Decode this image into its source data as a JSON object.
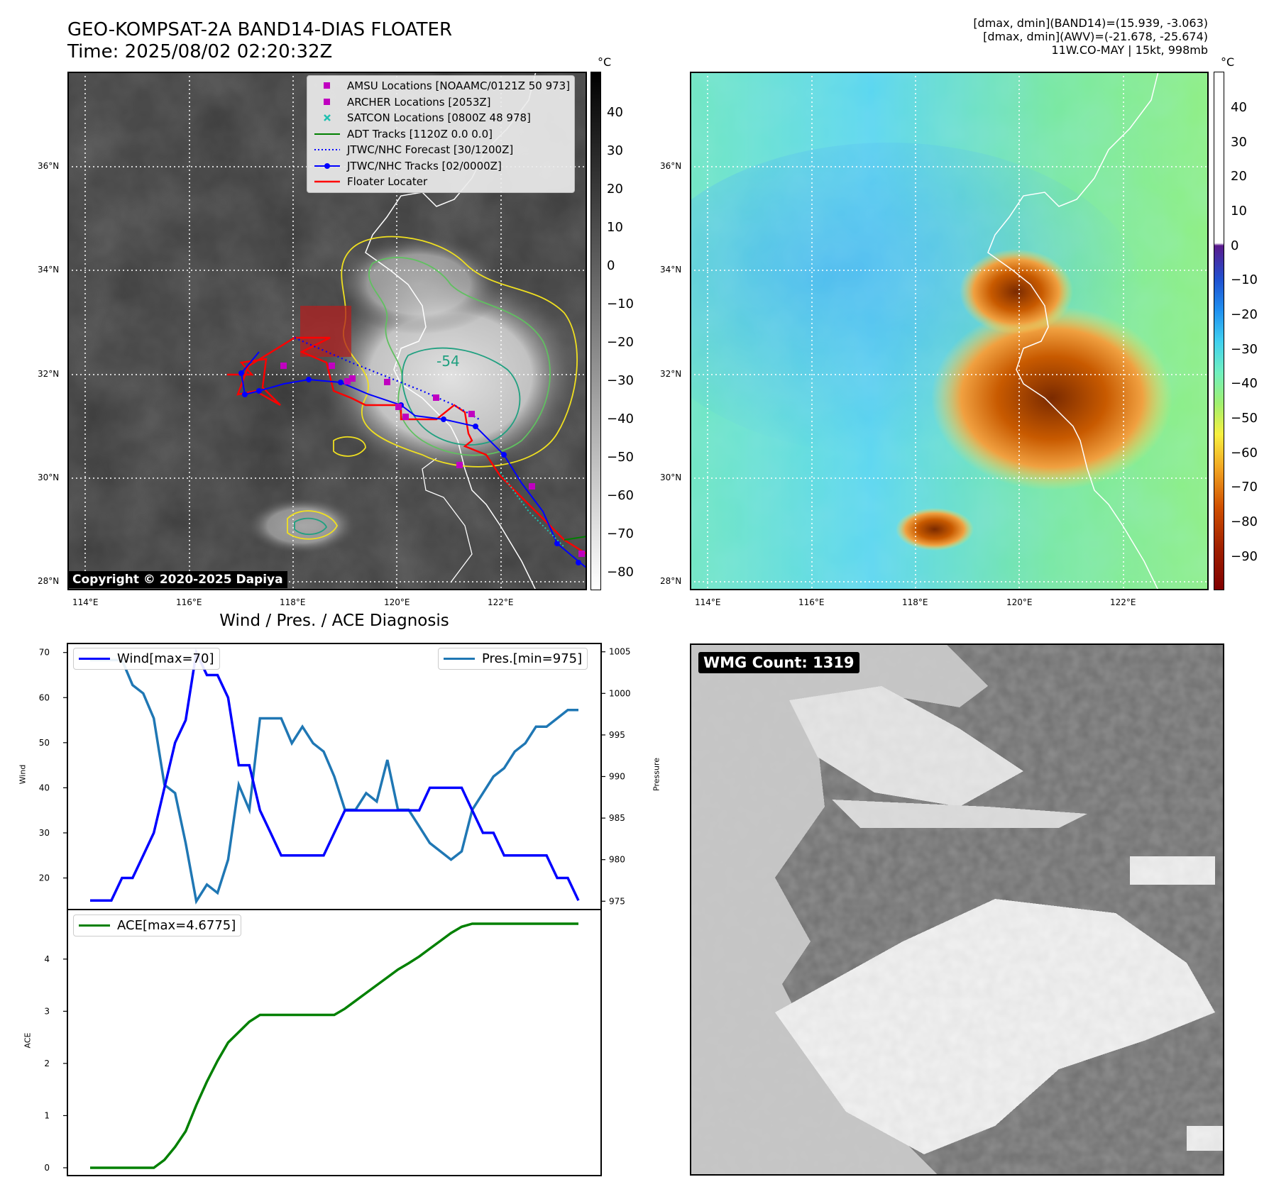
{
  "header": {
    "title_line1": "GEO-KOMPSAT-2A BAND14-DIAS FLOATER",
    "title_line2": "Time: 2025/08/02 02:20:32Z",
    "info_line1": "[dmax, dmin](BAND14)=(15.939, -3.063)",
    "info_line2": "[dmax, dmin](AWV)=(-21.678, -25.674)",
    "info_line3": "11W.CO-MAY | 15kt, 998mb"
  },
  "map_left": {
    "unit": "°C",
    "lat_labels": [
      "36°N",
      "34°N",
      "32°N",
      "30°N",
      "28°N"
    ],
    "lon_labels": [
      "114°E",
      "116°E",
      "118°E",
      "120°E",
      "122°E"
    ],
    "colorbar_ticks": [
      "40",
      "30",
      "20",
      "10",
      "0",
      "−10",
      "−20",
      "−30",
      "−40",
      "−50",
      "−60",
      "−70",
      "−80"
    ],
    "contour_label": "-54",
    "legend": [
      {
        "label": "AMSU Locations [NOAAMC/0121Z 50 973]",
        "symbol": "square",
        "color": "#c000c0"
      },
      {
        "label": "ARCHER Locations [2053Z]",
        "symbol": "square",
        "color": "#c000c0"
      },
      {
        "label": "SATCON Locations [0800Z 48 978]",
        "symbol": "x",
        "color": "#20c0b0"
      },
      {
        "label": "ADT Tracks [1120Z 0.0 0.0]",
        "symbol": "line",
        "color": "#008000"
      },
      {
        "label": "JTWC/NHC Forecast [30/1200Z]",
        "symbol": "dotted",
        "color": "#0000ff"
      },
      {
        "label": "JTWC/NHC Tracks [02/0000Z]",
        "symbol": "line-dot",
        "color": "#0000ff"
      },
      {
        "label": "Floater Locater",
        "symbol": "line",
        "color": "#ff0000"
      }
    ],
    "copyright": "Copyright © 2020-2025 Dapiya"
  },
  "map_right": {
    "unit": "°C",
    "lat_labels": [
      "36°N",
      "34°N",
      "32°N",
      "30°N",
      "28°N"
    ],
    "lon_labels": [
      "114°E",
      "116°E",
      "118°E",
      "120°E",
      "122°E"
    ],
    "colorbar_ticks": [
      "40",
      "30",
      "20",
      "10",
      "0",
      "−10",
      "−20",
      "−30",
      "−40",
      "−50",
      "−60",
      "−70",
      "−80",
      "−90"
    ]
  },
  "diagnosis": {
    "subtitle": "Wind / Pres. / ACE Diagnosis",
    "wind_ylabel": "Wind",
    "pres_ylabel": "Pressure",
    "ace_ylabel": "ACE",
    "wind_legend": "Wind[max=70]",
    "pres_legend": "Pres.[min=975]",
    "ace_legend": "ACE[max=4.6775]",
    "colors": {
      "wind": "#0000ff",
      "pressure": "#1f77b4",
      "ace": "#008000"
    }
  },
  "wmg": {
    "label": "WMG Count: 1319"
  },
  "chart_data": [
    {
      "type": "line",
      "name": "Wind",
      "ylabel": "Wind",
      "ylim": [
        13,
        72
      ],
      "yticks": [
        20,
        30,
        40,
        50,
        60,
        70
      ],
      "series": [
        {
          "name": "Wind[max=70]",
          "values": [
            15,
            15,
            15,
            20,
            20,
            25,
            30,
            40,
            50,
            55,
            70,
            65,
            65,
            60,
            45,
            45,
            35,
            30,
            25,
            25,
            25,
            25,
            25,
            30,
            35,
            35,
            35,
            35,
            35,
            35,
            35,
            35,
            40,
            40,
            40,
            40,
            35,
            30,
            30,
            25,
            25,
            25,
            25,
            25,
            20,
            20,
            15
          ]
        }
      ]
    },
    {
      "type": "line",
      "name": "Pressure",
      "ylabel": "Pressure",
      "ylim": [
        974,
        1006
      ],
      "yticks": [
        975,
        980,
        985,
        990,
        995,
        1000,
        1005
      ],
      "series": [
        {
          "name": "Pres.[min=975]",
          "values": [
            1004,
            1004,
            1004,
            1004,
            1001,
            1000,
            997,
            989,
            988,
            982,
            975,
            977,
            976,
            980,
            989,
            986,
            997,
            997,
            997,
            994,
            996,
            994,
            993,
            990,
            986,
            986,
            988,
            987,
            992,
            986,
            986,
            984,
            982,
            981,
            980,
            981,
            986,
            988,
            990,
            991,
            993,
            994,
            996,
            996,
            997,
            998,
            998
          ]
        }
      ]
    },
    {
      "type": "line",
      "name": "ACE",
      "ylabel": "ACE",
      "ylim": [
        -0.15,
        4.95
      ],
      "yticks": [
        0,
        1,
        2,
        3,
        4
      ],
      "series": [
        {
          "name": "ACE[max=4.6775]",
          "values": [
            0,
            0,
            0,
            0,
            0,
            0,
            0,
            0.15,
            0.4,
            0.7,
            1.2,
            1.65,
            2.05,
            2.4,
            2.6,
            2.8,
            2.93,
            2.93,
            2.93,
            2.93,
            2.93,
            2.93,
            2.93,
            2.93,
            3.05,
            3.2,
            3.35,
            3.5,
            3.65,
            3.8,
            3.92,
            4.05,
            4.2,
            4.35,
            4.5,
            4.62,
            4.6775,
            4.6775,
            4.6775,
            4.6775,
            4.6775,
            4.6775,
            4.6775,
            4.6775,
            4.6775,
            4.6775,
            4.6775
          ]
        }
      ]
    }
  ]
}
